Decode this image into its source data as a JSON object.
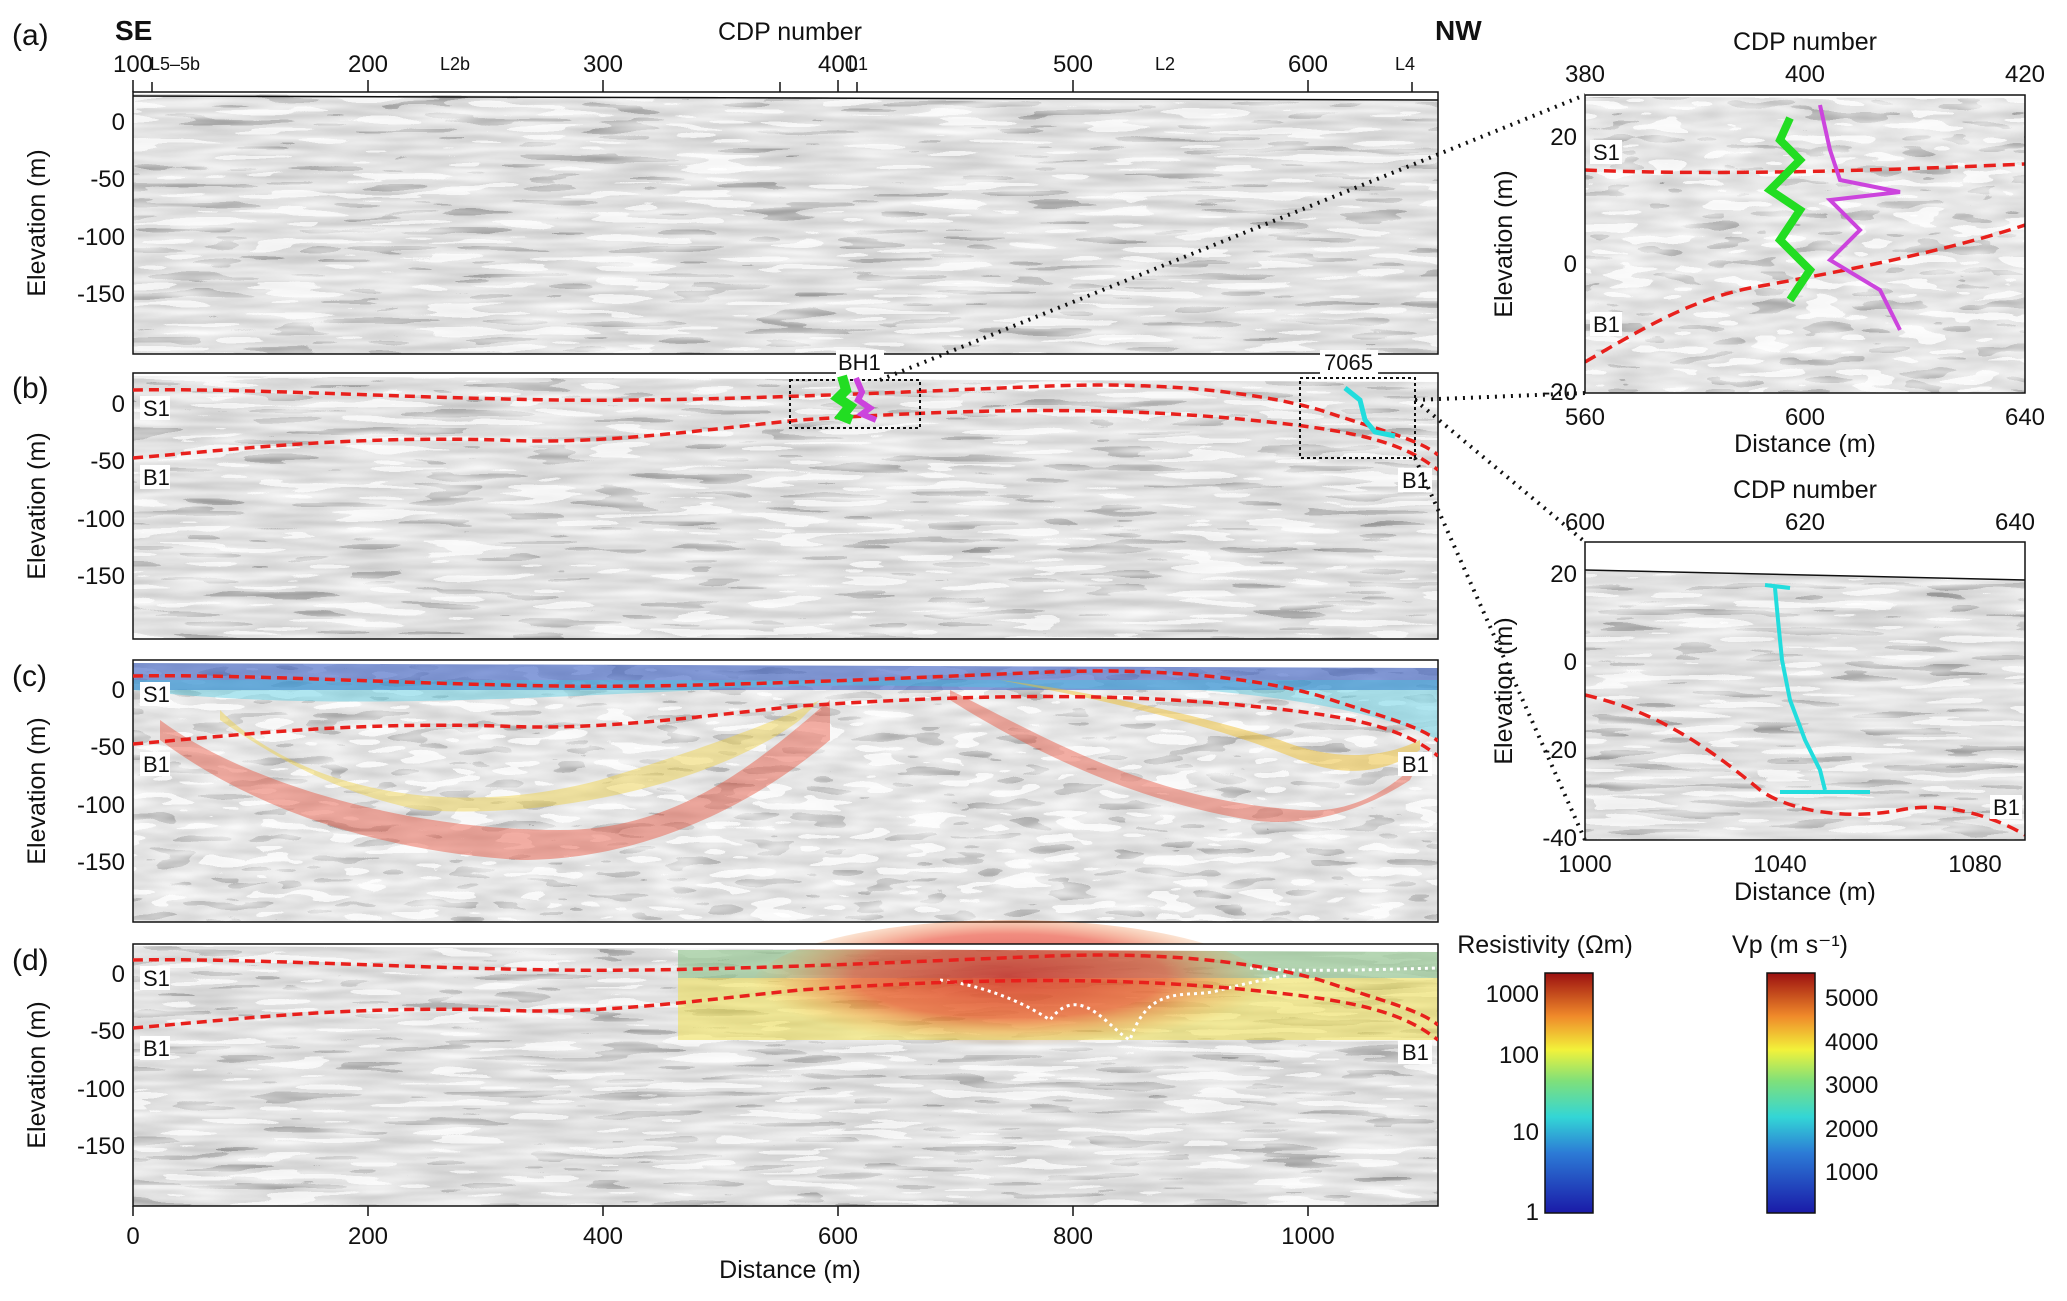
{
  "top_axis": {
    "label": "CDP number",
    "ticks": [
      "100",
      "200",
      "300",
      "400",
      "500",
      "600"
    ],
    "direction_left": "SE",
    "direction_right": "NW",
    "line_markers": [
      "L5–5b",
      "L2b",
      "L1",
      "L2",
      "L4"
    ]
  },
  "panels": [
    {
      "label": "(a)",
      "ylabel": "Elevation (m)",
      "yticks": [
        "0",
        "-50",
        "-100",
        "-150"
      ]
    },
    {
      "label": "(b)",
      "ylabel": "Elevation (m)",
      "yticks": [
        "0",
        "-50",
        "-100",
        "-150"
      ],
      "horizon_labels": [
        "S1",
        "B1",
        "B1"
      ],
      "borehole_labels": [
        "BH1",
        "7065"
      ]
    },
    {
      "label": "(c)",
      "ylabel": "Elevation (m)",
      "yticks": [
        "0",
        "-50",
        "-100",
        "-150"
      ],
      "horizon_labels": [
        "S1",
        "B1",
        "B1"
      ]
    },
    {
      "label": "(d)",
      "ylabel": "Elevation (m)",
      "yticks": [
        "0",
        "-50",
        "-100",
        "-150"
      ],
      "horizon_labels": [
        "S1",
        "B1",
        "B1"
      ]
    }
  ],
  "bottom_axis": {
    "label": "Distance (m)",
    "ticks": [
      "0",
      "200",
      "400",
      "600",
      "800",
      "1000"
    ]
  },
  "inset1": {
    "top_label": "CDP number",
    "top_ticks": [
      "380",
      "400",
      "420"
    ],
    "ylabel": "Elevation (m)",
    "yticks": [
      "20",
      "0",
      "-20"
    ],
    "bottom_label": "Distance (m)",
    "bottom_ticks": [
      "560",
      "600",
      "640"
    ],
    "horizon_labels": [
      "S1",
      "B1"
    ]
  },
  "inset2": {
    "top_label": "CDP number",
    "top_ticks": [
      "600",
      "620",
      "640"
    ],
    "ylabel": "Elevation (m)",
    "yticks": [
      "20",
      "0",
      "-20",
      "-40"
    ],
    "bottom_label": "Distance (m)",
    "bottom_ticks": [
      "1000",
      "1040",
      "1080"
    ],
    "horizon_labels": [
      "B1"
    ]
  },
  "colorbar_resistivity": {
    "title": "Resistivity (Ωm)",
    "ticks": [
      "1000",
      "100",
      "10",
      "1"
    ]
  },
  "colorbar_vp": {
    "title": "Vp (m s⁻¹)",
    "ticks": [
      "5000",
      "4000",
      "3000",
      "2000",
      "1000"
    ]
  },
  "colors": {
    "horizon": "#e8201c",
    "borehole_green": "#22dd22",
    "borehole_magenta": "#cc44dd",
    "borehole_cyan": "#22dddd"
  }
}
